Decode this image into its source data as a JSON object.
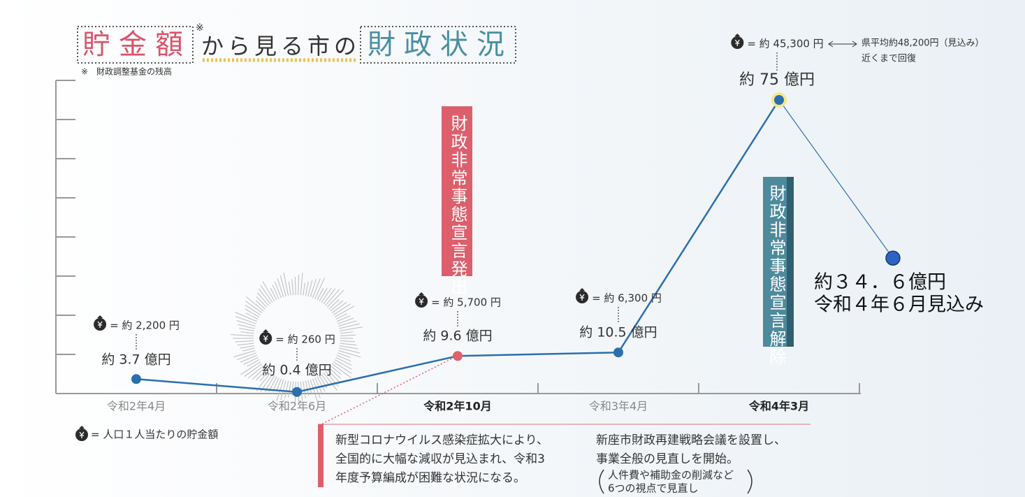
{
  "chart_data": {
    "type": "line",
    "title": "貯金額",
    "title_note_mark": "※",
    "title_middle": "から見る市の",
    "title_end": "財政状況",
    "footnote": "※　財政調整基金の残高",
    "categories": [
      "令和2年4月",
      "令和2年6月",
      "令和2年10月",
      "令和3年4月",
      "令和4年3月",
      null
    ],
    "emphasized_categories": [
      2,
      4
    ],
    "values": [
      3.7,
      0.4,
      9.6,
      10.5,
      75,
      34.6
    ],
    "value_labels": [
      "約 3.7 億円",
      "約 0.4 億円",
      "約 9.6 億円",
      "約 10.5 億円",
      "約 75 億円",
      "約３４．６億円"
    ],
    "per_capita": [
      2200,
      260,
      5700,
      6300,
      45300,
      null
    ],
    "per_capita_labels": [
      "= 約 2,200 円",
      "= 約 260 円",
      "= 約 5,700 円",
      "= 約 6,300 円",
      "= 約 45,300 円",
      null
    ],
    "color": "#2a6fae",
    "point_colors": [
      "#2a6fae",
      "#2a6fae",
      "#e0606e",
      "#2a6fae",
      "#2a6fae",
      "#2f63c0"
    ],
    "ylim": [
      0,
      80
    ],
    "yticks": [
      0,
      10,
      20,
      30,
      40,
      50,
      60,
      70,
      80
    ],
    "legend": "= 人口１人当たりの貯金額",
    "forecast_note": "令和４年６月見込み",
    "comparison": "県平均約48,200円（見込み）",
    "comparison_note": "近くまで回復",
    "banner_start": "財政非常事態宣言発出",
    "banner_end": "財政非常事態宣言解除",
    "note_left": [
      "新型コロナウイルス感染症拡大により、",
      "全国的に大幅な減収が見込まれ、令和3",
      "年度予算編成が困難な状況になる。"
    ],
    "note_right": [
      "新座市財政再建戦略会議を設置し、",
      "事業全般の見直しを開始。"
    ],
    "note_right_detail": [
      "人件費や補助金の削減など",
      "6つの視点で見直し"
    ]
  }
}
